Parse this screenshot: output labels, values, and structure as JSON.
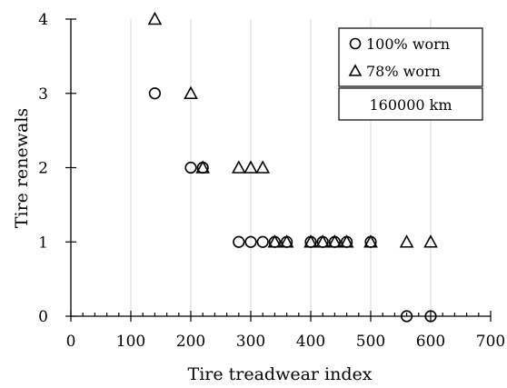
{
  "chart_data": {
    "type": "scatter",
    "title": "",
    "xlabel": "Tire treadwear index",
    "ylabel": "Tire renewals",
    "xlim": [
      0,
      700
    ],
    "ylim": [
      0,
      4
    ],
    "x_ticks": [
      "0",
      "100",
      "200",
      "300",
      "400",
      "500",
      "600",
      "700"
    ],
    "y_ticks": [
      "0",
      "1",
      "2",
      "3",
      "4"
    ],
    "grid": "vertical-major",
    "legend_position": "top-right",
    "annotation": "160000 km",
    "series": [
      {
        "name": "100% worn",
        "marker": "circle",
        "x": [
          140,
          200,
          220,
          280,
          300,
          320,
          340,
          360,
          400,
          420,
          440,
          460,
          500,
          560,
          600
        ],
        "y": [
          3,
          2,
          2,
          1,
          1,
          1,
          1,
          1,
          1,
          1,
          1,
          1,
          1,
          0,
          0
        ]
      },
      {
        "name": "78% worn",
        "marker": "triangle",
        "x": [
          140,
          200,
          220,
          280,
          300,
          320,
          340,
          360,
          400,
          420,
          440,
          460,
          500,
          560,
          600
        ],
        "y": [
          4,
          3,
          2,
          2,
          2,
          2,
          1,
          1,
          1,
          1,
          1,
          1,
          1,
          1,
          1
        ]
      }
    ]
  }
}
